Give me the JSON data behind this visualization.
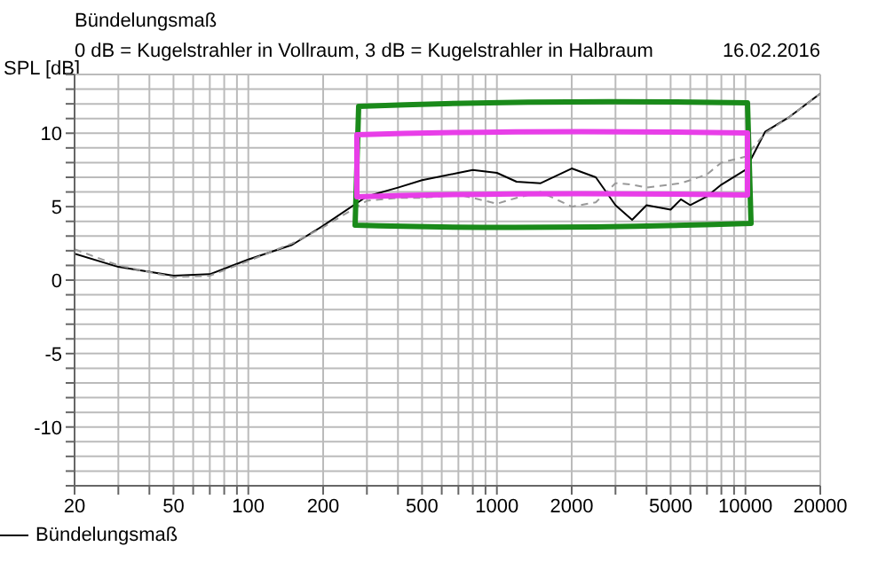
{
  "chart_data": {
    "type": "line",
    "title": "Bündelungsmaß",
    "subtitle": "0 dB = Kugelstrahler in Vollraum, 3 dB = Kugelstrahler in Halbraum",
    "annotations": [
      "16.02.2016"
    ],
    "ylabel": "SPL [dB]",
    "log": "x",
    "grid": true,
    "legend": "bottom",
    "marker": "none",
    "x": [
      20,
      30,
      50,
      70,
      100,
      150,
      200,
      300,
      400,
      500,
      700,
      800,
      1000,
      1200,
      1500,
      2000,
      2500,
      3000,
      3500,
      4000,
      5000,
      5500,
      6000,
      7000,
      8000,
      10000,
      12000,
      15000,
      20000
    ],
    "xlim": [
      20,
      20000
    ],
    "xticks": [
      20,
      {
        "value": 30,
        "label": null
      },
      {
        "value": 40,
        "label": null
      },
      50,
      {
        "value": 60,
        "label": null
      },
      {
        "value": 70,
        "label": null
      },
      {
        "value": 80,
        "label": null
      },
      {
        "value": 90,
        "label": null
      },
      100,
      200,
      {
        "value": 300,
        "label": null
      },
      {
        "value": 400,
        "label": null
      },
      500,
      {
        "value": 600,
        "label": null
      },
      {
        "value": 700,
        "label": null
      },
      {
        "value": 800,
        "label": null
      },
      {
        "value": 900,
        "label": null
      },
      1000,
      2000,
      {
        "value": 3000,
        "label": null
      },
      {
        "value": 4000,
        "label": null
      },
      5000,
      {
        "value": 6000,
        "label": null
      },
      {
        "value": 7000,
        "label": null
      },
      {
        "value": 8000,
        "label": null
      },
      {
        "value": 9000,
        "label": null
      },
      10000,
      20000
    ],
    "ylim": [
      -14,
      14
    ],
    "yticks": [
      {
        "value": -14,
        "label": null
      },
      {
        "value": -13,
        "label": null
      },
      {
        "value": -12,
        "label": null
      },
      {
        "value": -11,
        "label": null
      },
      -10,
      {
        "value": -9,
        "label": null
      },
      {
        "value": -8,
        "label": null
      },
      {
        "value": -7,
        "label": null
      },
      {
        "value": -6,
        "label": null
      },
      -5,
      {
        "value": -4,
        "label": null
      },
      {
        "value": -3,
        "label": null
      },
      {
        "value": -2,
        "label": null
      },
      {
        "value": -1,
        "label": null
      },
      0,
      {
        "value": 1,
        "label": null
      },
      {
        "value": 2,
        "label": null
      },
      {
        "value": 3,
        "label": null
      },
      {
        "value": 4,
        "label": null
      },
      5,
      {
        "value": 6,
        "label": null
      },
      {
        "value": 7,
        "label": null
      },
      {
        "value": 8,
        "label": null
      },
      {
        "value": 9,
        "label": null
      },
      10,
      {
        "value": 11,
        "label": null
      },
      {
        "value": 12,
        "label": null
      },
      {
        "value": 13,
        "label": null
      },
      {
        "value": 14,
        "label": null
      }
    ],
    "series": [
      {
        "name": "Bündelungsmaß",
        "color": "#000000",
        "line_style": "solid",
        "values": [
          1.8,
          0.9,
          0.3,
          0.4,
          1.4,
          2.4,
          3.7,
          5.7,
          6.3,
          6.8,
          7.3,
          7.5,
          7.3,
          6.7,
          6.6,
          7.6,
          7.0,
          5.1,
          4.1,
          5.1,
          4.8,
          5.5,
          5.1,
          5.7,
          6.5,
          7.5,
          10.1,
          11.1,
          12.7
        ]
      },
      {
        "color": "#999999",
        "line_style": "dashed",
        "values": [
          2.1,
          1.0,
          0.2,
          0.3,
          1.3,
          2.5,
          3.6,
          5.4,
          5.6,
          5.6,
          5.8,
          5.6,
          5.2,
          5.6,
          6.0,
          5.0,
          5.3,
          6.6,
          6.5,
          6.3,
          6.5,
          6.6,
          6.8,
          7.2,
          8.0,
          8.4,
          10.0,
          11.1,
          12.7
        ]
      }
    ]
  }
}
